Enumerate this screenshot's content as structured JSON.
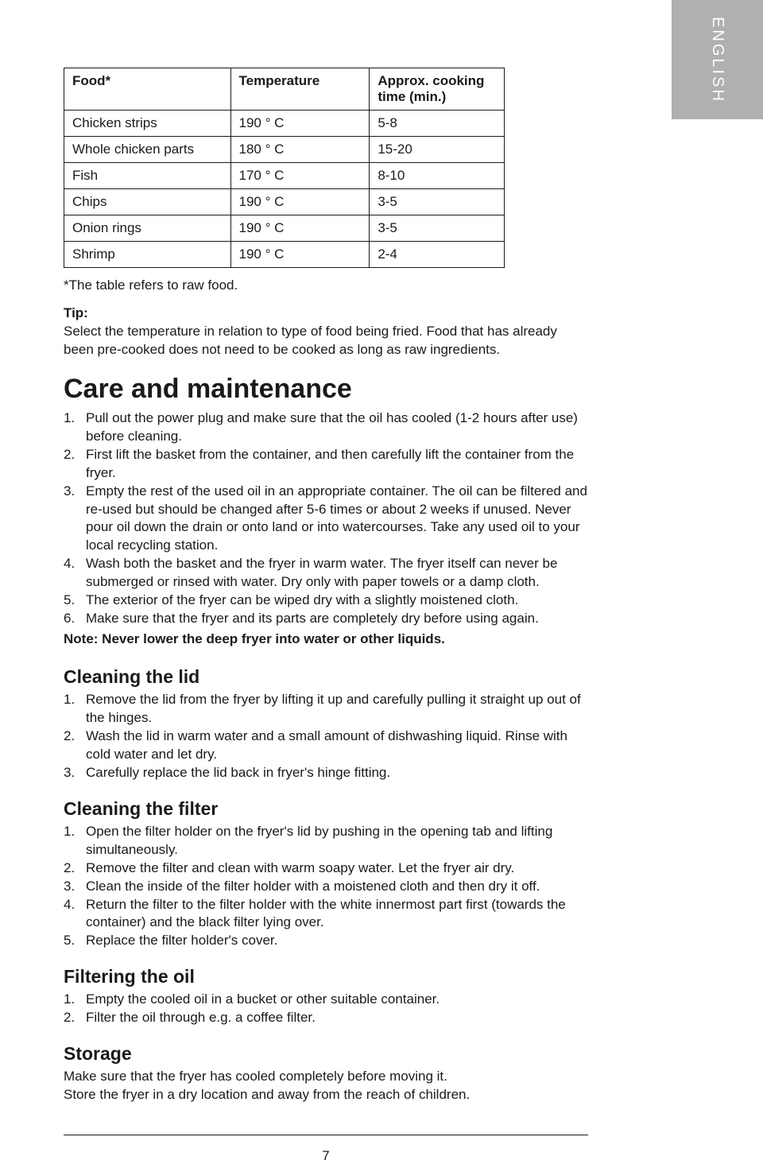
{
  "sideTab": {
    "label": "ENGLISH"
  },
  "table": {
    "headers": {
      "food": "Food*",
      "temp": "Temperature",
      "time": "Approx. cooking time (min.)"
    },
    "rows": [
      {
        "food": "Chicken strips",
        "temp": "190 ° C",
        "time": "5-8"
      },
      {
        "food": "Whole chicken parts",
        "temp": "180 ° C",
        "time": "15-20"
      },
      {
        "food": "Fish",
        "temp": "170 ° C",
        "time": "8-10"
      },
      {
        "food": "Chips",
        "temp": "190 ° C",
        "time": "3-5"
      },
      {
        "food": "Onion rings",
        "temp": "190 ° C",
        "time": "3-5"
      },
      {
        "food": "Shrimp",
        "temp": "190 ° C",
        "time": "2-4"
      }
    ]
  },
  "tableNote": "*The table refers to raw food.",
  "tip": {
    "label": "Tip:",
    "text": "Select the temperature in relation to type of food being fried. Food that has already been pre-cooked does not need to be cooked as long as raw ingredients."
  },
  "care": {
    "heading": "Care and maintenance",
    "items": [
      "Pull out the power plug and make sure that the oil has cooled (1-2 hours after use) before cleaning.",
      "First lift the basket from the container, and then carefully lift the container from the fryer.",
      "Empty the rest of the used oil in an appropriate container. The oil can be filtered and re-used but should be changed after 5-6 times or about 2 weeks if unused. Never pour oil down the drain or onto land or into watercourses. Take any used oil to your local recycling station.",
      "Wash both the basket and the fryer in warm water. The fryer itself can never be submerged or rinsed with water. Dry only with paper towels or a damp cloth.",
      "The exterior of the fryer can be wiped dry with a slightly moistened cloth.",
      "Make sure that the fryer and its parts are completely dry before using again."
    ],
    "note": "Note: Never lower the deep fryer into water or other liquids."
  },
  "lid": {
    "heading": "Cleaning the lid",
    "items": [
      "Remove the lid from the fryer by lifting it up and carefully pulling it straight up out of the hinges.",
      "Wash the lid in warm water and a small amount of dishwashing liquid. Rinse with cold water and let dry.",
      "Carefully replace the lid back in fryer's hinge fitting."
    ]
  },
  "filter": {
    "heading": "Cleaning the filter",
    "items": [
      "Open the filter holder on the fryer's lid by pushing in the opening tab and lifting simultaneously.",
      "Remove the filter and clean with warm soapy water. Let the fryer air dry.",
      "Clean the inside of the filter holder with a moistened cloth and then dry it off.",
      "Return the filter to the filter holder with the white innermost part first (towards the container) and the black filter lying over.",
      "Replace the filter holder's cover."
    ]
  },
  "oil": {
    "heading": "Filtering the oil",
    "items": [
      "Empty the cooled oil in a bucket or other suitable container.",
      "Filter the oil through e.g. a coffee filter."
    ]
  },
  "storage": {
    "heading": "Storage",
    "line1": "Make sure that the fryer has cooled completely before moving it.",
    "line2": "Store the fryer in a dry location and away from the reach of children."
  },
  "pageNumber": "7"
}
